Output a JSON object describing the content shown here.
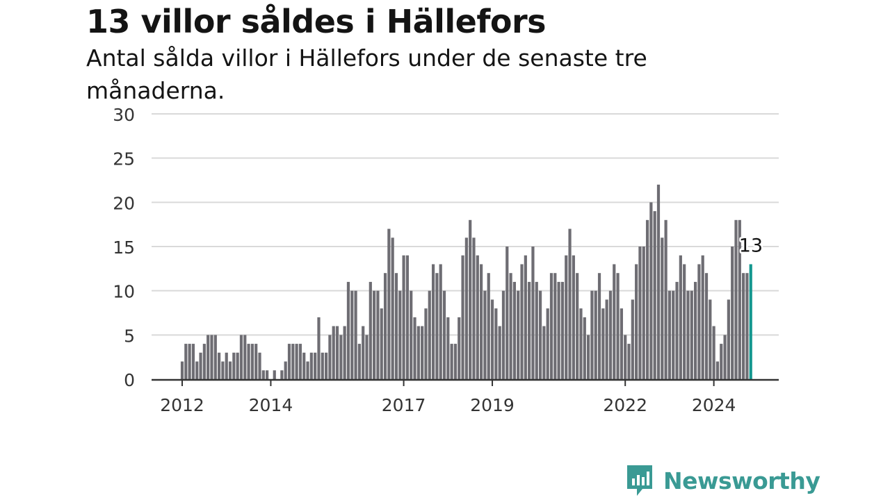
{
  "header": {
    "title": "13 villor såldes i Hällefors",
    "subtitle": "Antal sålda villor i Hällefors under de senaste tre månaderna."
  },
  "brand": {
    "name": "Newsworthy",
    "icon": "newsworthy-logo-icon",
    "color": "#3a9a94"
  },
  "colors": {
    "bar": "#6e6d73",
    "highlight": "#14978f",
    "grid": "#d9d9d9",
    "axis": "#333333"
  },
  "chart_data": {
    "type": "bar",
    "x_start": "2012-01",
    "x_interval": "month",
    "ylim": [
      0,
      30
    ],
    "yticks": [
      0,
      5,
      10,
      15,
      20,
      25,
      30
    ],
    "xticks": [
      "2012",
      "2014",
      "2017",
      "2019",
      "2022",
      "2024"
    ],
    "grid": true,
    "highlight_label": "13",
    "values": [
      2,
      4,
      4,
      4,
      2,
      3,
      4,
      5,
      5,
      5,
      3,
      2,
      3,
      2,
      3,
      3,
      5,
      5,
      4,
      4,
      4,
      3,
      1,
      1,
      0,
      1,
      0,
      1,
      2,
      4,
      4,
      4,
      4,
      3,
      2,
      3,
      3,
      7,
      3,
      3,
      5,
      6,
      6,
      5,
      6,
      11,
      10,
      10,
      4,
      6,
      5,
      11,
      10,
      10,
      8,
      12,
      17,
      16,
      12,
      10,
      14,
      14,
      10,
      7,
      6,
      6,
      8,
      10,
      13,
      12,
      13,
      10,
      7,
      4,
      4,
      7,
      14,
      16,
      18,
      16,
      14,
      13,
      10,
      12,
      9,
      8,
      6,
      10,
      15,
      12,
      11,
      10,
      13,
      14,
      11,
      15,
      11,
      10,
      6,
      8,
      12,
      12,
      11,
      11,
      14,
      17,
      14,
      12,
      8,
      7,
      5,
      10,
      10,
      12,
      8,
      9,
      10,
      13,
      12,
      8,
      5,
      4,
      9,
      13,
      15,
      15,
      18,
      20,
      19,
      22,
      16,
      18,
      10,
      10,
      11,
      14,
      13,
      10,
      10,
      11,
      13,
      14,
      12,
      9,
      6,
      2,
      4,
      5,
      9,
      15,
      18,
      18,
      12,
      12,
      13
    ]
  }
}
